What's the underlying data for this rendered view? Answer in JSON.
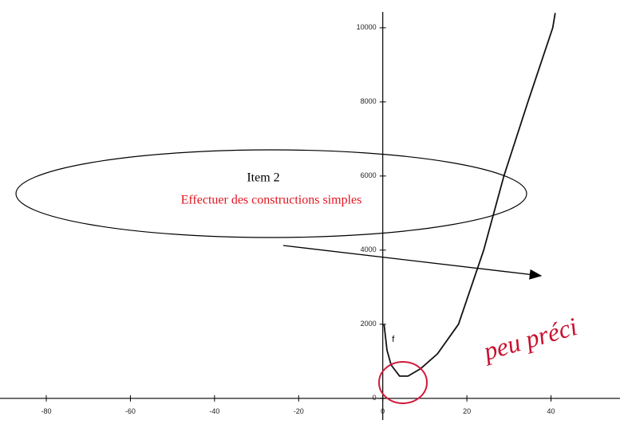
{
  "chart_data": {
    "type": "line",
    "x": [
      0.3,
      1,
      2,
      4,
      6,
      9,
      13,
      18,
      24,
      28.8,
      34.5,
      40.4,
      41
    ],
    "series": [
      {
        "name": "f",
        "color": "#111111",
        "values": [
          2000,
          1300,
          900,
          600,
          600,
          800,
          1200,
          2000,
          4000,
          6000,
          8000,
          10000,
          10400
        ]
      }
    ],
    "xlim": [
      -91,
      56.4
    ],
    "ylim": [
      -800,
      10750
    ],
    "xticks": [
      -80,
      -60,
      -40,
      -20,
      0,
      20,
      40
    ],
    "yticks": [
      0,
      2000,
      4000,
      6000,
      8000,
      10000
    ],
    "annotations": [
      "Item 2",
      "Effectuer des constructions simples",
      "peu préci"
    ]
  }
}
